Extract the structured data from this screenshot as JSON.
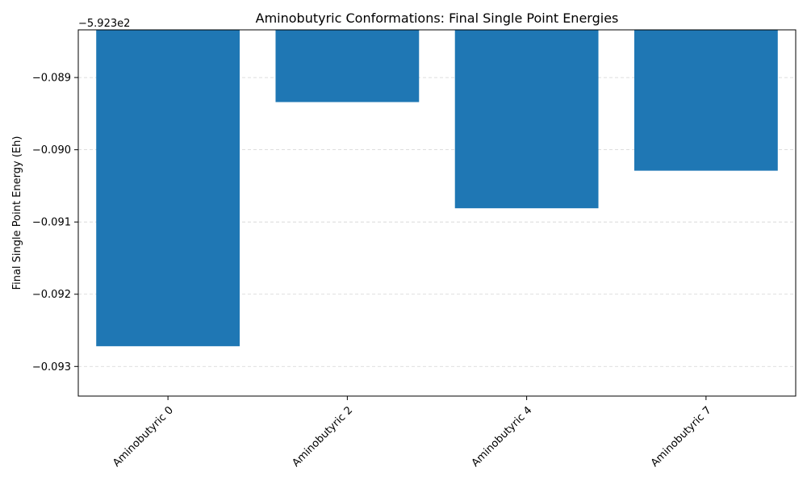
{
  "chart_data": {
    "type": "bar",
    "title": "Aminobutyric Conformations: Final Single Point Energies",
    "xlabel": "",
    "ylabel": "Final Single Point Energy (Eh)",
    "offset_label": "−5.923e2",
    "categories": [
      "Aminobutyric 0",
      "Aminobutyric 2",
      "Aminobutyric 4",
      "Aminobutyric 7"
    ],
    "values": [
      -592.39272,
      -592.38934,
      -592.39081,
      -592.39029
    ],
    "offset_value": -592.3,
    "ylim": [
      -592.39341,
      -592.38834
    ],
    "yticks": [
      -0.089,
      -0.09,
      -0.091,
      -0.092,
      -0.093
    ],
    "ytick_labels": [
      "−0.089",
      "−0.090",
      "−0.091",
      "−0.092",
      "−0.093"
    ],
    "bar_color": "#1f77b4",
    "grid": "y-axis, dashed",
    "legend": "none"
  }
}
